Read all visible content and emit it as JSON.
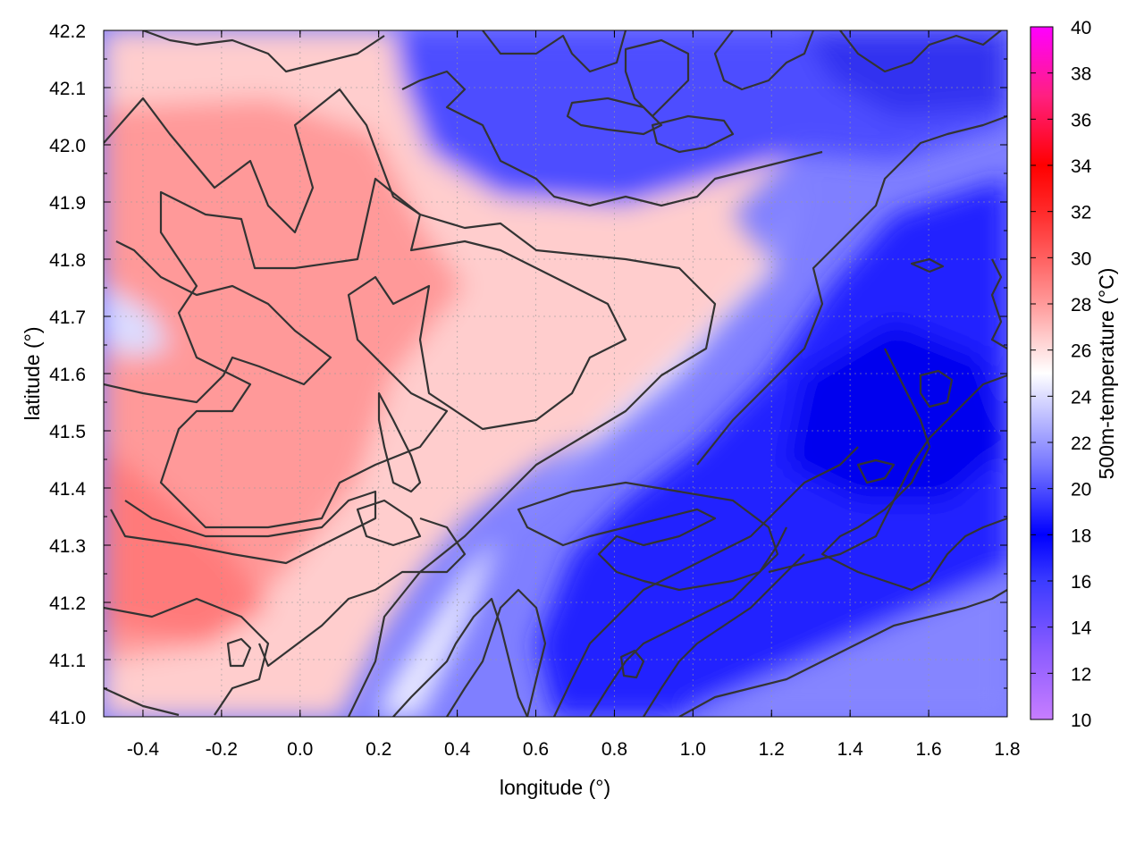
{
  "chart_data": {
    "type": "heatmap",
    "xlabel": "longitude (°)",
    "ylabel": "latitude (°)",
    "colorbar_label": "500m-temperature (°C)",
    "xlim": [
      -0.5,
      1.8
    ],
    "ylim": [
      41.0,
      42.2
    ],
    "clim": [
      10,
      40
    ],
    "x_ticks": [
      "-0.4",
      "-0.2",
      "0.0",
      "0.2",
      "0.4",
      "0.6",
      "0.8",
      "1.0",
      "1.2",
      "1.4",
      "1.6",
      "1.8"
    ],
    "x_tick_values": [
      -0.4,
      -0.2,
      0.0,
      0.2,
      0.4,
      0.6,
      0.8,
      1.0,
      1.2,
      1.4,
      1.6,
      1.8
    ],
    "y_ticks": [
      "41.0",
      "41.1",
      "41.2",
      "41.3",
      "41.4",
      "41.5",
      "41.6",
      "41.7",
      "41.8",
      "41.9",
      "42.0",
      "42.1",
      "42.2"
    ],
    "y_tick_values": [
      41.0,
      41.1,
      41.2,
      41.3,
      41.4,
      41.5,
      41.6,
      41.7,
      41.8,
      41.9,
      42.0,
      42.1,
      42.2
    ],
    "colorbar_ticks": [
      "10",
      "12",
      "14",
      "16",
      "18",
      "20",
      "22",
      "24",
      "26",
      "28",
      "30",
      "32",
      "34",
      "36",
      "38",
      "40"
    ],
    "colorbar_tick_values": [
      10,
      12,
      14,
      16,
      18,
      20,
      22,
      24,
      26,
      28,
      30,
      32,
      34,
      36,
      38,
      40
    ],
    "colormap": [
      {
        "value": 10,
        "color": "#c77dff"
      },
      {
        "value": 13,
        "color": "#8a5cff"
      },
      {
        "value": 16,
        "color": "#3b3bff"
      },
      {
        "value": 18,
        "color": "#0000ff"
      },
      {
        "value": 21,
        "color": "#7777ff"
      },
      {
        "value": 24,
        "color": "#dcdcff"
      },
      {
        "value": 25,
        "color": "#ffffff"
      },
      {
        "value": 26,
        "color": "#ffdede"
      },
      {
        "value": 28,
        "color": "#ff9a9a"
      },
      {
        "value": 30,
        "color": "#ff6060"
      },
      {
        "value": 32,
        "color": "#ff2a2a"
      },
      {
        "value": 34,
        "color": "#ff0000"
      },
      {
        "value": 37,
        "color": "#ff2080"
      },
      {
        "value": 40,
        "color": "#ff00ff"
      }
    ],
    "grid": true,
    "contour_lines": true
  }
}
